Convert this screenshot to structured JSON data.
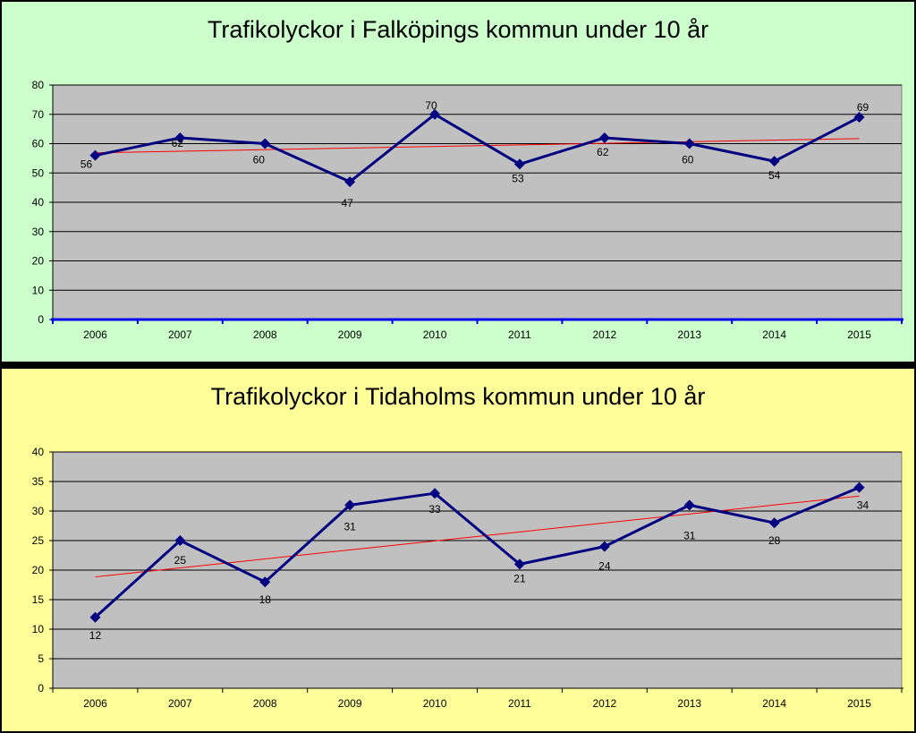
{
  "chart_data": [
    {
      "type": "line",
      "title": "Trafikolyckor i Falköpings kommun under 10 år",
      "categories": [
        "2006",
        "2007",
        "2008",
        "2009",
        "2010",
        "2011",
        "2012",
        "2013",
        "2014",
        "2015"
      ],
      "series": [
        {
          "values": [
            56,
            62,
            60,
            47,
            70,
            53,
            62,
            60,
            54,
            69
          ]
        }
      ],
      "trendline": true,
      "ylim": [
        0,
        80
      ],
      "ytick_step": 10,
      "xlabel": "",
      "ylabel": "",
      "grid": true,
      "background": "#ccffcc",
      "plot_background": "#c0c0c0",
      "line_color": "#000080",
      "trend_color": "#ff0000"
    },
    {
      "type": "line",
      "title": "Trafikolyckor i Tidaholms kommun under 10 år",
      "categories": [
        "2006",
        "2007",
        "2008",
        "2009",
        "2010",
        "2011",
        "2012",
        "2013",
        "2014",
        "2015"
      ],
      "series": [
        {
          "values": [
            12,
            25,
            18,
            31,
            33,
            21,
            24,
            31,
            28,
            34
          ]
        }
      ],
      "trendline": true,
      "ylim": [
        0,
        40
      ],
      "ytick_step": 5,
      "xlabel": "",
      "ylabel": "",
      "grid": true,
      "background": "#ffff99",
      "plot_background": "#c0c0c0",
      "line_color": "#000080",
      "trend_color": "#ff0000"
    }
  ]
}
